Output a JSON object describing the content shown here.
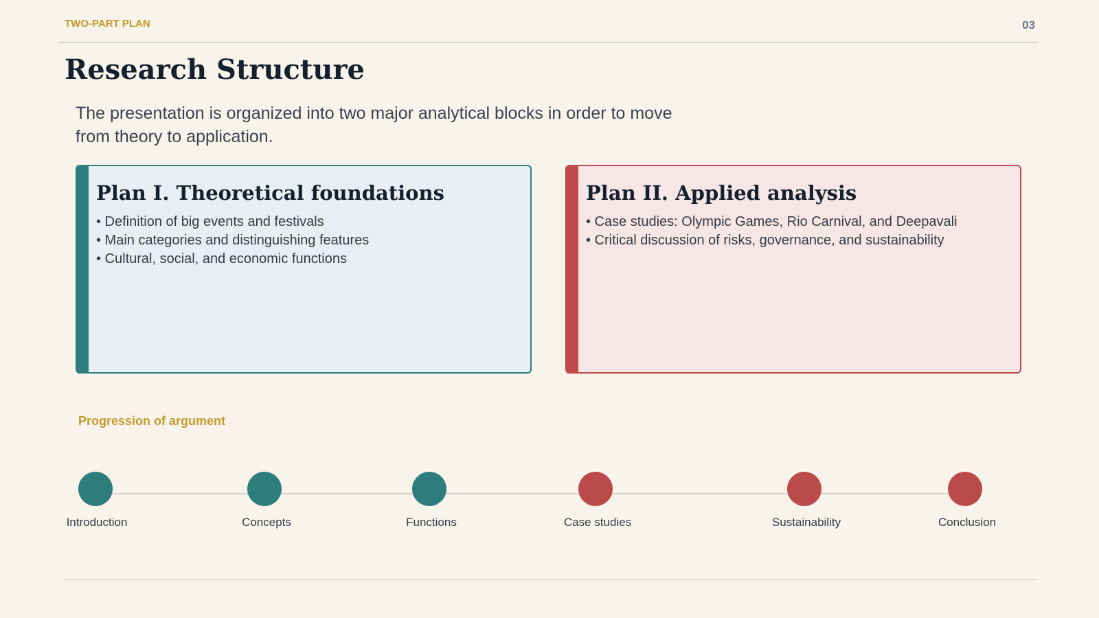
{
  "header": {
    "kicker": "TWO-PART PLAN",
    "page": "03"
  },
  "title": "Research Structure",
  "intro": "The presentation is organized into two major analytical blocks in order to move from theory to application.",
  "plans": [
    {
      "title": "Plan I. Theoretical foundations",
      "bullets": [
        "• Definition of big events and festivals",
        "• Main categories and distinguishing features",
        "• Cultural, social, and economic functions"
      ]
    },
    {
      "title": "Plan II. Applied analysis",
      "bullets": [
        "• Case studies: Olympic Games, Rio Carnival, and Deepavali",
        "• Critical discussion of risks, governance, and sustainability"
      ]
    }
  ],
  "progression": {
    "label": "Progression of argument",
    "steps": [
      "Introduction",
      "Concepts",
      "Functions",
      "Case studies",
      "Sustainability",
      "Conclusion"
    ]
  }
}
